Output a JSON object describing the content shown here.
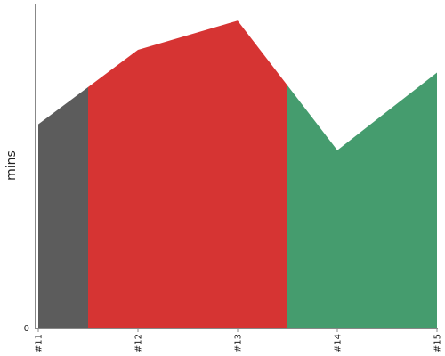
{
  "chart_data": {
    "type": "area",
    "title": "",
    "xlabel": "",
    "ylabel": "mins",
    "categories": [
      "#11",
      "#12",
      "#13",
      "#14",
      "#15"
    ],
    "values": [
      63,
      86,
      95,
      55,
      79
    ],
    "ylim": [
      0,
      100
    ],
    "y_ticks": [
      0
    ],
    "grid": false,
    "legend": "none",
    "segments": [
      {
        "from": 0,
        "to": 0.5,
        "color": "#5c5c5c"
      },
      {
        "from": 0.5,
        "to": 2.5,
        "color": "#d63433"
      },
      {
        "from": 2.5,
        "to": 4,
        "color": "#459c6e"
      }
    ]
  }
}
